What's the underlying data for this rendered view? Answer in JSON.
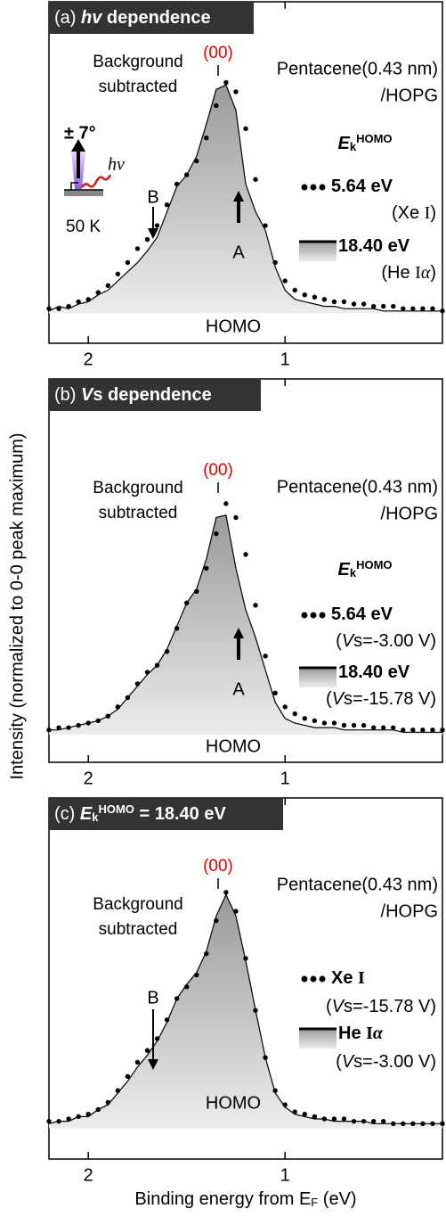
{
  "y_label": "Intensity (normalized to 0-0 peak maximum)",
  "x_label": [
    {
      "text": "Binding energy from E",
      "style": ""
    },
    {
      "text": "F",
      "style": "sub"
    },
    {
      "text": " (eV)",
      "style": ""
    }
  ],
  "chart_data": [
    {
      "type": "line",
      "title": [
        {
          "text": "(a) ",
          "style": ""
        },
        {
          "text": "hv",
          "style": "bold italic"
        },
        {
          "text": " dependence",
          "style": "bold"
        }
      ],
      "peak_label": "(00)",
      "note": [
        "Background",
        "subtracted"
      ],
      "sample": [
        "Pentacene(0.43 nm)",
        "/HOPG"
      ],
      "band_label": "HOMO",
      "legend_title": [
        {
          "text": "E",
          "style": "bold italic"
        },
        {
          "text": "k",
          "style": "bold sub"
        },
        {
          "text": "HOMO",
          "style": "bold sup"
        }
      ],
      "arrows": [
        "A",
        "B"
      ],
      "inset": {
        "angle": "± 7°",
        "photon": "hν",
        "temperature": "50 K"
      },
      "x": [
        2.2,
        2.15,
        2.1,
        2.05,
        2.0,
        1.95,
        1.9,
        1.85,
        1.8,
        1.75,
        1.7,
        1.65,
        1.6,
        1.55,
        1.5,
        1.45,
        1.4,
        1.35,
        1.3,
        1.25,
        1.2,
        1.15,
        1.1,
        1.05,
        1.0,
        0.95,
        0.9,
        0.85,
        0.8,
        0.75,
        0.7,
        0.65,
        0.6,
        0.55,
        0.5,
        0.45,
        0.4,
        0.35,
        0.3,
        0.25,
        0.2
      ],
      "xlim": [
        2.2,
        0.2
      ],
      "xticks": [
        2,
        1
      ],
      "ylim": [
        -0.13,
        1.35
      ],
      "series": [
        {
          "name": [
            {
              "text": "5.64 eV",
              "style": "bold"
            }
          ],
          "note": [
            {
              "text": "(Xe ",
              "style": ""
            },
            {
              "text": "I",
              "style": "serif"
            },
            {
              "text": ")",
              "style": ""
            }
          ],
          "marker": "dots",
          "color": "#000000",
          "values": [
            0.02,
            0.02,
            0.03,
            0.05,
            0.06,
            0.09,
            0.12,
            0.17,
            0.22,
            0.28,
            0.32,
            0.38,
            0.47,
            0.56,
            0.6,
            0.66,
            0.76,
            0.9,
            1.0,
            0.96,
            0.8,
            0.58,
            0.38,
            0.22,
            0.14,
            0.1,
            0.08,
            0.07,
            0.06,
            0.05,
            0.05,
            0.04,
            0.04,
            0.03,
            0.03,
            0.03,
            0.02,
            0.02,
            0.02,
            0.02,
            0.01
          ]
        },
        {
          "name": [
            {
              "text": "18.40 eV",
              "style": "bold"
            }
          ],
          "note": [
            {
              "text": "(He ",
              "style": ""
            },
            {
              "text": "I",
              "style": "serif"
            },
            {
              "text": "α",
              "style": "serif italic"
            },
            {
              "text": ")",
              "style": ""
            }
          ],
          "marker": "line",
          "color": "#000000",
          "values": [
            0.01,
            0.03,
            0.02,
            0.04,
            0.05,
            0.08,
            0.1,
            0.14,
            0.18,
            0.22,
            0.27,
            0.33,
            0.44,
            0.55,
            0.6,
            0.68,
            0.82,
            0.97,
            0.99,
            0.88,
            0.56,
            0.44,
            0.36,
            0.2,
            0.1,
            0.06,
            0.05,
            0.04,
            0.03,
            0.03,
            0.02,
            0.02,
            0.02,
            0.02,
            0.01,
            0.01,
            0.01,
            0.01,
            0.01,
            0.01,
            0.01
          ]
        }
      ]
    },
    {
      "type": "line",
      "title": [
        {
          "text": "(b) ",
          "style": ""
        },
        {
          "text": "V",
          "style": "bold italic"
        },
        {
          "text": "s dependence",
          "style": "bold"
        }
      ],
      "peak_label": "(00)",
      "note": [
        "Background",
        "subtracted"
      ],
      "sample": [
        "Pentacene(0.43 nm)",
        "/HOPG"
      ],
      "band_label": "HOMO",
      "legend_title": [
        {
          "text": "E",
          "style": "bold italic"
        },
        {
          "text": "k",
          "style": "bold sub"
        },
        {
          "text": "HOMO",
          "style": "bold sup"
        }
      ],
      "arrows": [
        "A"
      ],
      "x": [
        2.2,
        2.15,
        2.1,
        2.05,
        2.0,
        1.95,
        1.9,
        1.85,
        1.8,
        1.75,
        1.7,
        1.65,
        1.6,
        1.55,
        1.5,
        1.45,
        1.4,
        1.35,
        1.3,
        1.25,
        1.2,
        1.15,
        1.1,
        1.05,
        1.0,
        0.95,
        0.9,
        0.85,
        0.8,
        0.75,
        0.7,
        0.65,
        0.6,
        0.55,
        0.5,
        0.45,
        0.4,
        0.35,
        0.3,
        0.25,
        0.2
      ],
      "xlim": [
        2.2,
        0.2
      ],
      "xticks": [
        2,
        1
      ],
      "ylim": [
        -0.12,
        1.54
      ],
      "series": [
        {
          "name": [
            {
              "text": "5.64 eV",
              "style": "bold"
            }
          ],
          "note": [
            {
              "text": "(",
              "style": ""
            },
            {
              "text": "V",
              "style": "italic"
            },
            {
              "text": "s=-3.00 V)",
              "style": ""
            }
          ],
          "marker": "dots",
          "color": "#000000",
          "values": [
            0.02,
            0.03,
            0.03,
            0.04,
            0.05,
            0.06,
            0.08,
            0.12,
            0.16,
            0.22,
            0.27,
            0.3,
            0.36,
            0.46,
            0.57,
            0.62,
            0.72,
            0.87,
            1.0,
            0.94,
            0.78,
            0.56,
            0.34,
            0.18,
            0.12,
            0.09,
            0.07,
            0.06,
            0.05,
            0.05,
            0.04,
            0.04,
            0.04,
            0.03,
            0.03,
            0.03,
            0.02,
            0.02,
            0.02,
            0.02,
            0.02
          ]
        },
        {
          "name": [
            {
              "text": "18.40 eV",
              "style": "bold"
            }
          ],
          "note": [
            {
              "text": "(",
              "style": ""
            },
            {
              "text": "V",
              "style": "italic"
            },
            {
              "text": "s=-15.78 V)",
              "style": ""
            }
          ],
          "marker": "line",
          "color": "#000000",
          "values": [
            0.02,
            0.02,
            0.03,
            0.04,
            0.05,
            0.06,
            0.08,
            0.11,
            0.16,
            0.21,
            0.26,
            0.3,
            0.37,
            0.47,
            0.57,
            0.63,
            0.76,
            0.94,
            0.95,
            0.72,
            0.54,
            0.42,
            0.28,
            0.14,
            0.07,
            0.05,
            0.04,
            0.03,
            0.03,
            0.03,
            0.02,
            0.02,
            0.02,
            0.02,
            0.02,
            0.02,
            0.01,
            0.01,
            0.01,
            0.01,
            0.01
          ]
        }
      ]
    },
    {
      "type": "line",
      "title": [
        {
          "text": "(c) ",
          "style": ""
        },
        {
          "text": "E",
          "style": "bold italic"
        },
        {
          "text": "k",
          "style": "bold sub"
        },
        {
          "text": "HOMO",
          "style": "bold sup"
        },
        {
          "text": " = 18.40 eV",
          "style": "bold"
        }
      ],
      "peak_label": "(00)",
      "note": [
        "Background",
        "subtracted"
      ],
      "sample": [
        "Pentacene(0.43 nm)",
        "/HOPG"
      ],
      "band_label": "HOMO",
      "arrows": [
        "B"
      ],
      "x": [
        2.2,
        2.15,
        2.1,
        2.05,
        2.0,
        1.95,
        1.9,
        1.85,
        1.8,
        1.75,
        1.7,
        1.65,
        1.6,
        1.55,
        1.5,
        1.45,
        1.4,
        1.35,
        1.3,
        1.25,
        1.2,
        1.15,
        1.1,
        1.05,
        1.0,
        0.95,
        0.9,
        0.85,
        0.8,
        0.75,
        0.7,
        0.65,
        0.6,
        0.55,
        0.5,
        0.45,
        0.4,
        0.35,
        0.3,
        0.25,
        0.2
      ],
      "xlim": [
        2.2,
        0.2
      ],
      "xticks": [
        2,
        1
      ],
      "ylim": [
        -0.13,
        1.4
      ],
      "series": [
        {
          "name": [
            {
              "text": "Xe ",
              "style": "bold"
            },
            {
              "text": "I",
              "style": "bold serif"
            }
          ],
          "note": [
            {
              "text": "(",
              "style": ""
            },
            {
              "text": "V",
              "style": "italic"
            },
            {
              "text": "s=-15.78 V)",
              "style": ""
            }
          ],
          "marker": "dots",
          "color": "#000000",
          "values": [
            0.03,
            0.03,
            0.04,
            0.05,
            0.06,
            0.08,
            0.11,
            0.16,
            0.22,
            0.28,
            0.33,
            0.38,
            0.46,
            0.55,
            0.6,
            0.65,
            0.74,
            0.88,
            1.0,
            0.92,
            0.72,
            0.5,
            0.3,
            0.16,
            0.1,
            0.07,
            0.06,
            0.05,
            0.04,
            0.04,
            0.04,
            0.03,
            0.03,
            0.03,
            0.03,
            0.02,
            0.02,
            0.02,
            0.02,
            0.02,
            0.02
          ]
        },
        {
          "name": [
            {
              "text": "He ",
              "style": "bold"
            },
            {
              "text": "I",
              "style": "bold serif"
            },
            {
              "text": "α",
              "style": "bold serif italic"
            }
          ],
          "note": [
            {
              "text": "(",
              "style": ""
            },
            {
              "text": "V",
              "style": "italic"
            },
            {
              "text": "s=-3.00 V)",
              "style": ""
            }
          ],
          "marker": "line",
          "color": "#000000",
          "values": [
            0.02,
            0.03,
            0.03,
            0.05,
            0.05,
            0.08,
            0.1,
            0.15,
            0.2,
            0.26,
            0.31,
            0.37,
            0.45,
            0.55,
            0.61,
            0.66,
            0.75,
            0.9,
            0.99,
            0.9,
            0.71,
            0.5,
            0.3,
            0.15,
            0.09,
            0.06,
            0.05,
            0.04,
            0.04,
            0.03,
            0.03,
            0.03,
            0.03,
            0.02,
            0.02,
            0.02,
            0.02,
            0.02,
            0.02,
            0.02,
            0.02
          ]
        }
      ]
    }
  ]
}
